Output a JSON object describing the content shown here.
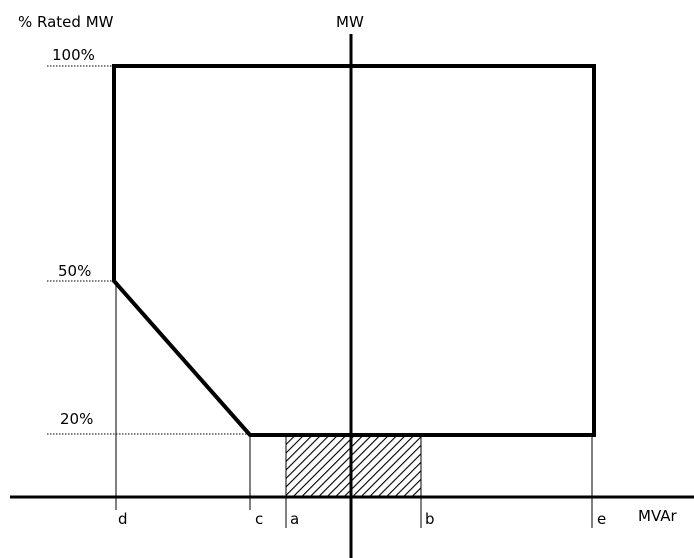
{
  "diagram": {
    "y_axis_title": "% Rated MW",
    "center_axis_label": "MW",
    "x_axis_label": "MVAr",
    "y_ticks": {
      "top": "100%",
      "middle": "50%",
      "bottom": "20%"
    },
    "x_markers": [
      "d",
      "c",
      "a",
      "b",
      "e"
    ],
    "colors": {
      "line": "#000000",
      "background": "#ffffff",
      "hatch": "#000000"
    }
  }
}
